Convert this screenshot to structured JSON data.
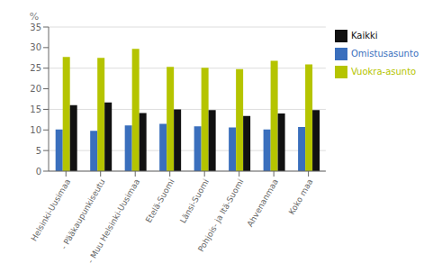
{
  "chart_data": {
    "type": "bar",
    "categories": [
      "Helsinki-Uusimaa",
      " - Pääkaupunkiseutu",
      " - Muu Helsinki-Uusimaa",
      "Etelä-Suomi",
      "Länsi-Suomi",
      "Pohjois- ja Itä-Suomi",
      "Ahvenanmaa",
      "Koko maa"
    ],
    "series": [
      {
        "name": "Omistusasunto",
        "color": "#3a6fbd",
        "values": [
          10.1,
          9.8,
          11.1,
          11.5,
          10.9,
          10.6,
          10.1,
          10.7
        ]
      },
      {
        "name": "Vuokra-asunto",
        "color": "#b5c400",
        "values": [
          27.7,
          27.5,
          29.7,
          25.3,
          25.1,
          24.8,
          26.8,
          25.9
        ]
      },
      {
        "name": "Kaikki",
        "color": "#111111",
        "values": [
          16.0,
          16.7,
          14.1,
          15.0,
          14.8,
          13.4,
          14.0,
          14.8
        ]
      }
    ],
    "ylabel": "%",
    "ylim": [
      0,
      35
    ],
    "yticks": [
      0,
      5,
      10,
      15,
      20,
      25,
      30,
      35
    ],
    "grid": true,
    "legend": "upper right"
  }
}
